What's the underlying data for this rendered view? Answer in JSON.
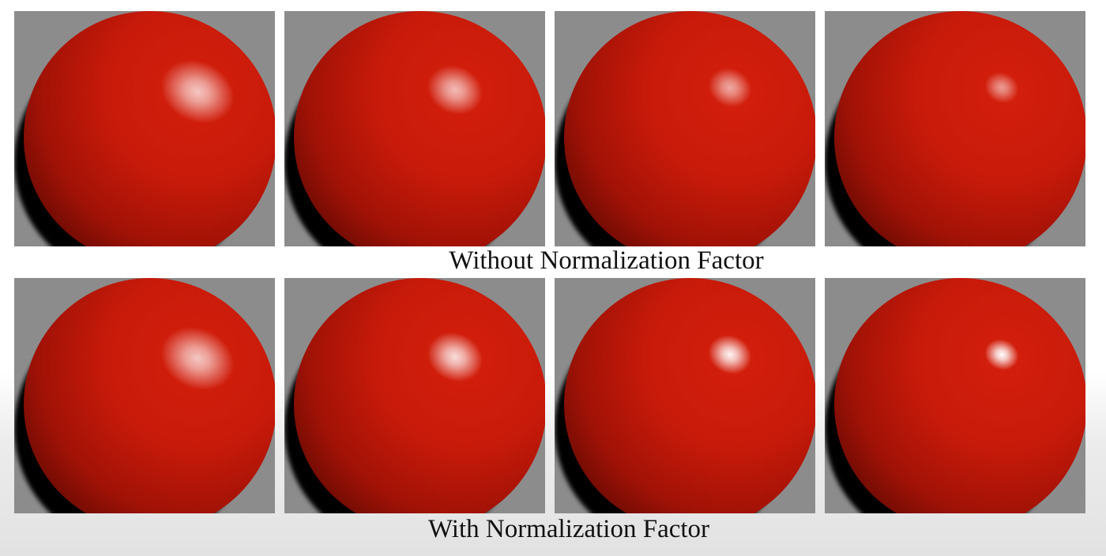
{
  "captions": {
    "without": "Without Normalization Factor",
    "with": "With Normalization Factor"
  },
  "colors": {
    "background_gray": "#8c8c8c",
    "sphere_red": "#c81a0a",
    "sphere_dark": "#6e0b04",
    "shadow": "#000000",
    "highlight": "#ffffff"
  },
  "rows": [
    {
      "name": "without-normalization",
      "spheres": [
        {
          "specular_peak": 0.75
        },
        {
          "specular_peak": 0.7
        },
        {
          "specular_peak": 0.62
        },
        {
          "specular_peak": 0.55
        }
      ]
    },
    {
      "name": "with-normalization",
      "spheres": [
        {
          "specular_peak": 0.75
        },
        {
          "specular_peak": 0.85
        },
        {
          "specular_peak": 0.95
        },
        {
          "specular_peak": 1.0
        }
      ]
    }
  ]
}
